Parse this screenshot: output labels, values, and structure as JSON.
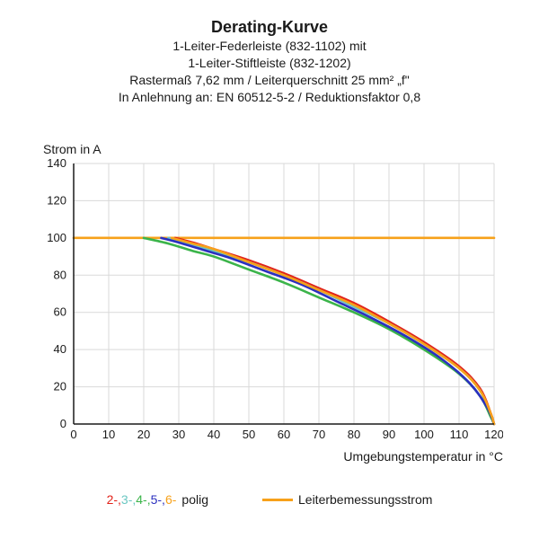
{
  "title": "Derating-Kurve",
  "subtitle_lines": [
    "1-Leiter-Federleiste (832-1102) mit",
    "1-Leiter-Stiftleiste (832-1202)",
    "Rastermaß 7,62 mm / Leiterquerschnitt 25 mm² „f\"",
    "In Anlehnung an: EN 60512-5-2 / Reduktionsfaktor 0,8"
  ],
  "chart": {
    "type": "line",
    "background_color": "#ffffff",
    "axis_color": "#1a1a1a",
    "grid_color": "#d9d9d9",
    "grid_width": 1,
    "axis_width": 1.5,
    "line_width": 2.6,
    "x": {
      "label": "Umgebungstemperatur in °C",
      "min": 0,
      "max": 120,
      "tick_step": 10,
      "tick_labels": [
        "0",
        "10",
        "20",
        "30",
        "40",
        "50",
        "60",
        "70",
        "80",
        "90",
        "100",
        "110",
        "120"
      ],
      "label_fontsize": 14,
      "tick_fontsize": 13
    },
    "y": {
      "label": "Strom in A",
      "min": 0,
      "max": 140,
      "tick_step": 20,
      "tick_labels": [
        "0",
        "20",
        "40",
        "60",
        "80",
        "100",
        "120",
        "140"
      ],
      "label_fontsize": 14,
      "tick_fontsize": 13
    },
    "reference_line": {
      "name": "Leiterbemessungsstrom",
      "y": 100,
      "color": "#f7a11a",
      "width": 2.6
    },
    "series": [
      {
        "name": "2-polig",
        "color": "#e2231a",
        "points": [
          [
            29,
            100
          ],
          [
            35,
            97
          ],
          [
            40,
            94
          ],
          [
            50,
            88
          ],
          [
            60,
            81
          ],
          [
            70,
            73
          ],
          [
            80,
            65
          ],
          [
            90,
            55
          ],
          [
            100,
            44
          ],
          [
            110,
            31
          ],
          [
            116,
            19
          ],
          [
            119,
            6
          ],
          [
            120,
            0
          ]
        ]
      },
      {
        "name": "3-polig",
        "color": "#6bc7c2",
        "points": [
          [
            27,
            100
          ],
          [
            33,
            97
          ],
          [
            40,
            93
          ],
          [
            50,
            87
          ],
          [
            60,
            80
          ],
          [
            70,
            72
          ],
          [
            80,
            63
          ],
          [
            90,
            54
          ],
          [
            100,
            43
          ],
          [
            110,
            30
          ],
          [
            116,
            18
          ],
          [
            119,
            5
          ],
          [
            120,
            0
          ]
        ]
      },
      {
        "name": "4-polig",
        "color": "#3bb44a",
        "points": [
          [
            20,
            100
          ],
          [
            27,
            97
          ],
          [
            34,
            93
          ],
          [
            40,
            90
          ],
          [
            50,
            83
          ],
          [
            60,
            76
          ],
          [
            70,
            68
          ],
          [
            80,
            60
          ],
          [
            90,
            51
          ],
          [
            100,
            40
          ],
          [
            110,
            27
          ],
          [
            116,
            15
          ],
          [
            119,
            4
          ],
          [
            120,
            0
          ]
        ]
      },
      {
        "name": "5-polig",
        "color": "#2b2fbf",
        "points": [
          [
            25,
            100
          ],
          [
            31,
            97
          ],
          [
            38,
            93
          ],
          [
            45,
            89
          ],
          [
            55,
            82
          ],
          [
            65,
            75
          ],
          [
            75,
            66
          ],
          [
            85,
            57
          ],
          [
            95,
            47
          ],
          [
            105,
            35
          ],
          [
            113,
            22
          ],
          [
            118,
            9
          ],
          [
            120,
            0
          ]
        ]
      },
      {
        "name": "6-polig",
        "color": "#f7a11a",
        "points": [
          [
            28,
            100
          ],
          [
            34,
            97
          ],
          [
            40,
            94
          ],
          [
            50,
            87
          ],
          [
            60,
            80
          ],
          [
            70,
            72
          ],
          [
            80,
            64
          ],
          [
            90,
            54
          ],
          [
            100,
            43
          ],
          [
            110,
            30
          ],
          [
            116,
            18
          ],
          [
            119,
            6
          ],
          [
            120,
            0
          ]
        ]
      }
    ]
  },
  "legend": {
    "polig_prefixes": [
      "2-",
      "3-",
      "4-",
      "5-",
      "6-"
    ],
    "polig_colors": [
      "#e2231a",
      "#6bc7c2",
      "#3bb44a",
      "#2b2fbf",
      "#f7a11a"
    ],
    "polig_suffix": "polig",
    "rated_label": "Leiterbemessungsstrom",
    "rated_color": "#f7a11a"
  }
}
